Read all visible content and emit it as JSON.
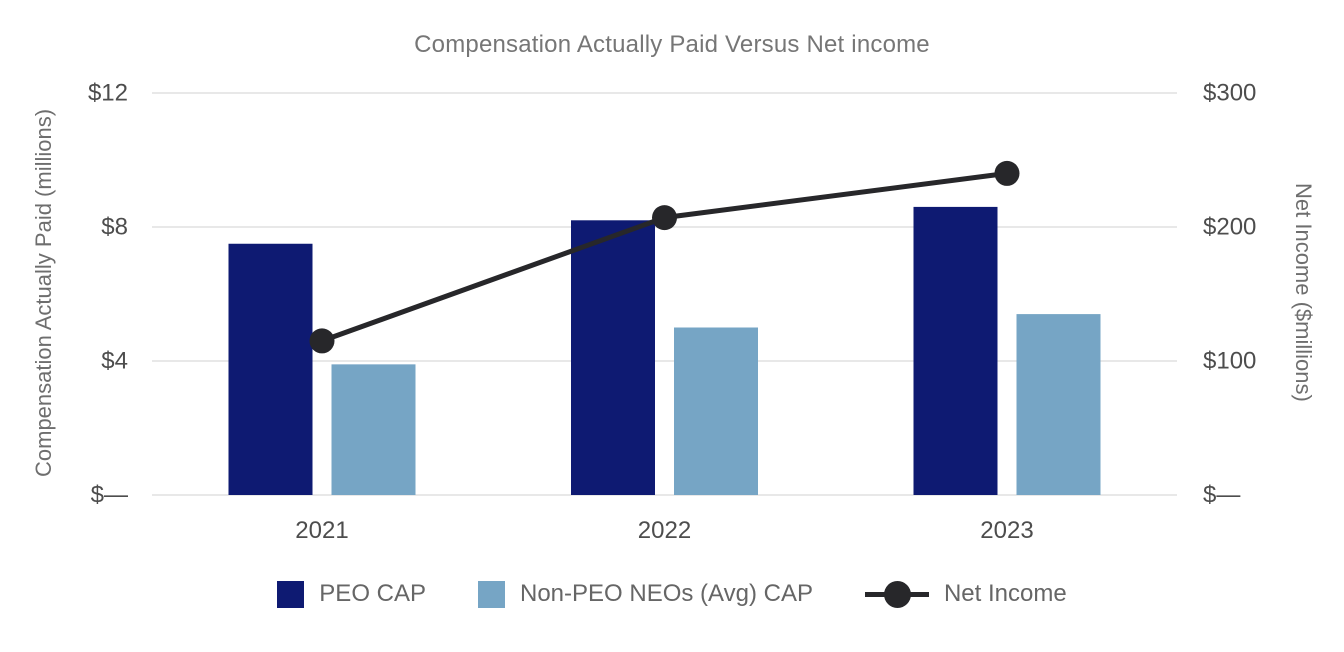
{
  "chart_data": {
    "type": "bar",
    "subtype": "grouped-bars-with-line-overlay-dual-axis",
    "title": "Compensation Actually Paid Versus Net income",
    "categories": [
      "2021",
      "2022",
      "2023"
    ],
    "series": [
      {
        "name": "PEO CAP",
        "kind": "bar",
        "axis": "left",
        "color": "#0e1a72",
        "values": [
          7.5,
          8.2,
          8.6
        ]
      },
      {
        "name": "Non-PEO NEOs (Avg) CAP",
        "kind": "bar",
        "axis": "left",
        "color": "#76a5c5",
        "values": [
          3.9,
          5.0,
          5.4
        ]
      },
      {
        "name": "Net Income",
        "kind": "line",
        "axis": "right",
        "color": "#27272a",
        "values": [
          115,
          207,
          240
        ]
      }
    ],
    "left_axis": {
      "label": "Compensation Actually Paid (millions)",
      "tick_labels": [
        "$12",
        "$8",
        "$4",
        "$—"
      ],
      "tick_values": [
        12,
        8,
        4,
        0
      ],
      "min": 0,
      "max": 12
    },
    "right_axis": {
      "label": "Net Income ($millions)",
      "tick_labels": [
        "$300",
        "$200",
        "$100",
        "$—"
      ],
      "tick_values": [
        300,
        200,
        100,
        0
      ],
      "min": 0,
      "max": 300
    },
    "grid": true,
    "gridline_color": "#e8e8e8",
    "legend_position": "bottom",
    "background_color": "#ffffff"
  }
}
